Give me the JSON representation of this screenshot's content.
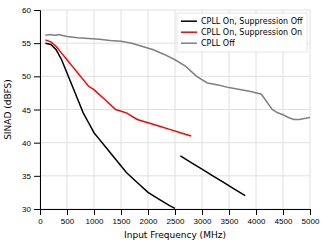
{
  "chart_data": {
    "type": "line",
    "title": "",
    "xlabel": "Input Frequency (MHz)",
    "ylabel": "SINAD (dBFS)",
    "xlim": [
      0,
      5000
    ],
    "ylim": [
      30,
      60
    ],
    "xticks": [
      0,
      500,
      1000,
      1500,
      2000,
      2500,
      3000,
      3500,
      4000,
      4500,
      5000
    ],
    "yticks": [
      30,
      35,
      40,
      45,
      50,
      55,
      60
    ],
    "grid": true,
    "legend": "upper right",
    "series": [
      {
        "name": "CPLL On, Suppression Off",
        "color": "#000000",
        "x": [
          100,
          200,
          300,
          400,
          500,
          600,
          700,
          800,
          900,
          1000,
          1100,
          1200,
          1400,
          1600,
          1800,
          2000,
          2200,
          2400,
          2500,
          null,
          2600,
          2800,
          3000,
          3200,
          3400,
          3600,
          3800
        ],
        "values": [
          55.0,
          54.8,
          54.0,
          52.5,
          50.5,
          48.5,
          46.5,
          44.5,
          43.0,
          41.5,
          40.5,
          39.5,
          37.5,
          35.5,
          34.0,
          32.5,
          31.5,
          30.5,
          30.1,
          null,
          38.0,
          37.0,
          36.0,
          35.0,
          34.0,
          33.0,
          32.0
        ]
      },
      {
        "name": "CPLL On, Suppression On",
        "color": "#ff0000",
        "x": [
          100,
          200,
          300,
          400,
          500,
          600,
          700,
          800,
          900,
          1000,
          1200,
          1400,
          1600,
          1800,
          2000,
          2200,
          2400,
          2600,
          2800
        ],
        "values": [
          55.5,
          55.2,
          54.5,
          53.5,
          52.5,
          51.5,
          50.5,
          49.5,
          48.5,
          48.0,
          46.5,
          45.0,
          44.5,
          43.5,
          43.0,
          42.5,
          42.0,
          41.5,
          41.0
        ]
      },
      {
        "name": "CPLL Off",
        "color": "#808080",
        "x": [
          100,
          200,
          250,
          300,
          350,
          400,
          500,
          700,
          900,
          1100,
          1300,
          1500,
          1700,
          1900,
          2100,
          2300,
          2500,
          2700,
          2900,
          3100,
          3300,
          3500,
          3700,
          3900,
          4100,
          4300,
          4400,
          4500,
          4600,
          4700,
          4800,
          5000
        ],
        "values": [
          56.2,
          56.3,
          56.2,
          56.2,
          56.3,
          56.2,
          56.0,
          55.8,
          55.7,
          55.6,
          55.4,
          55.3,
          55.0,
          54.5,
          54.0,
          53.3,
          52.5,
          51.5,
          50.0,
          49.0,
          48.7,
          48.3,
          48.0,
          47.7,
          47.3,
          45.0,
          44.5,
          44.2,
          43.8,
          43.5,
          43.5,
          43.8
        ]
      }
    ]
  }
}
